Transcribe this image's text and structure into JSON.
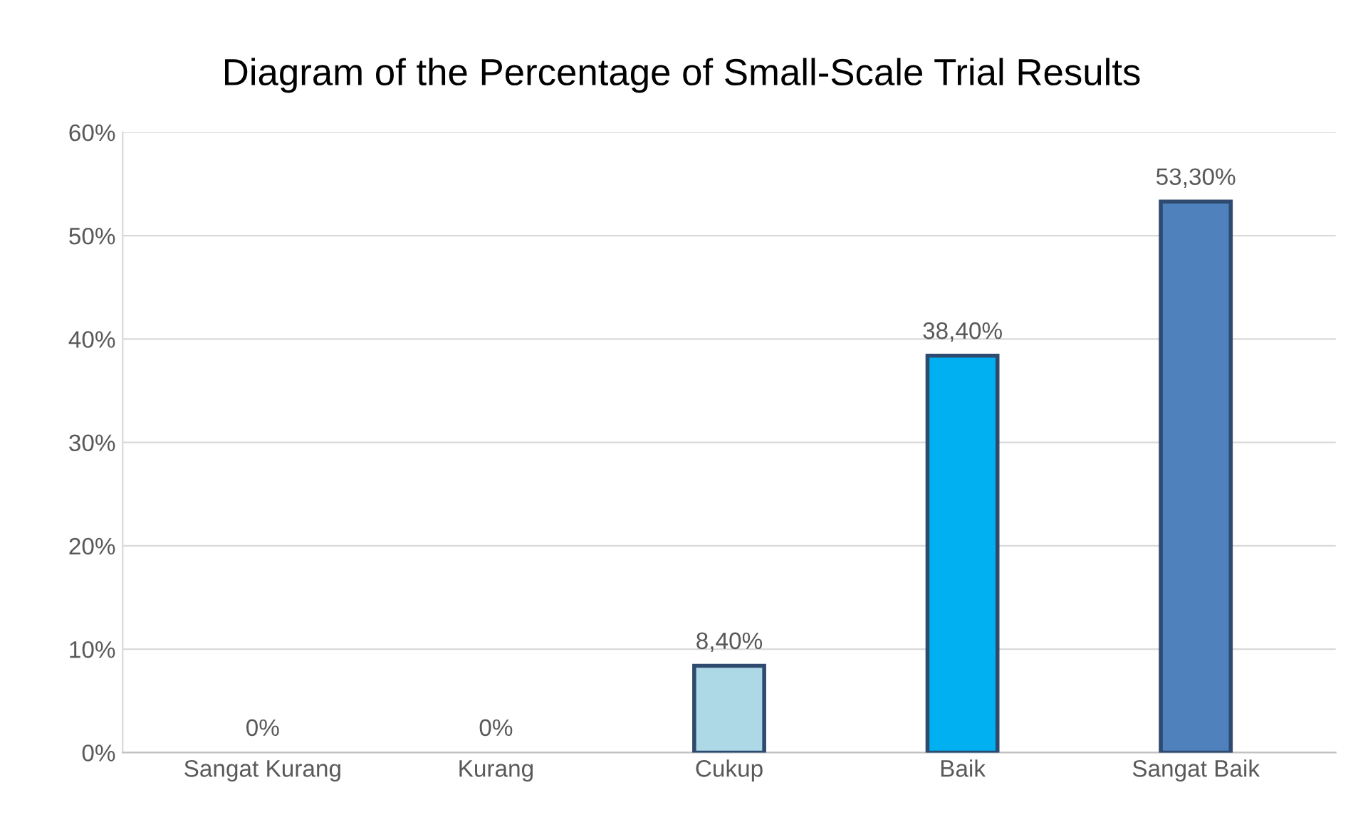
{
  "chart_data": {
    "type": "bar",
    "title": "Diagram of the Percentage of Small-Scale Trial Results",
    "categories": [
      "Sangat Kurang",
      "Kurang",
      "Cukup",
      "Baik",
      "Sangat Baik"
    ],
    "values": [
      0,
      0,
      8.4,
      38.4,
      53.3
    ],
    "colors": [
      "#add8e6",
      "#add8e6",
      "#add8e6",
      "#00b0f0",
      "#4f81bd"
    ],
    "value_labels": [
      "0%",
      "0%",
      "8,40%",
      "38,40%",
      "53,30%"
    ],
    "ylim": [
      0,
      60
    ],
    "yticks": [
      {
        "value": 0,
        "label": "0%"
      },
      {
        "value": 10,
        "label": "10%"
      },
      {
        "value": 20,
        "label": "20%"
      },
      {
        "value": 30,
        "label": "30%"
      },
      {
        "value": 40,
        "label": "40%"
      },
      {
        "value": 50,
        "label": "50%"
      },
      {
        "value": 60,
        "label": "60%"
      }
    ],
    "grid": "y",
    "legend": false
  }
}
